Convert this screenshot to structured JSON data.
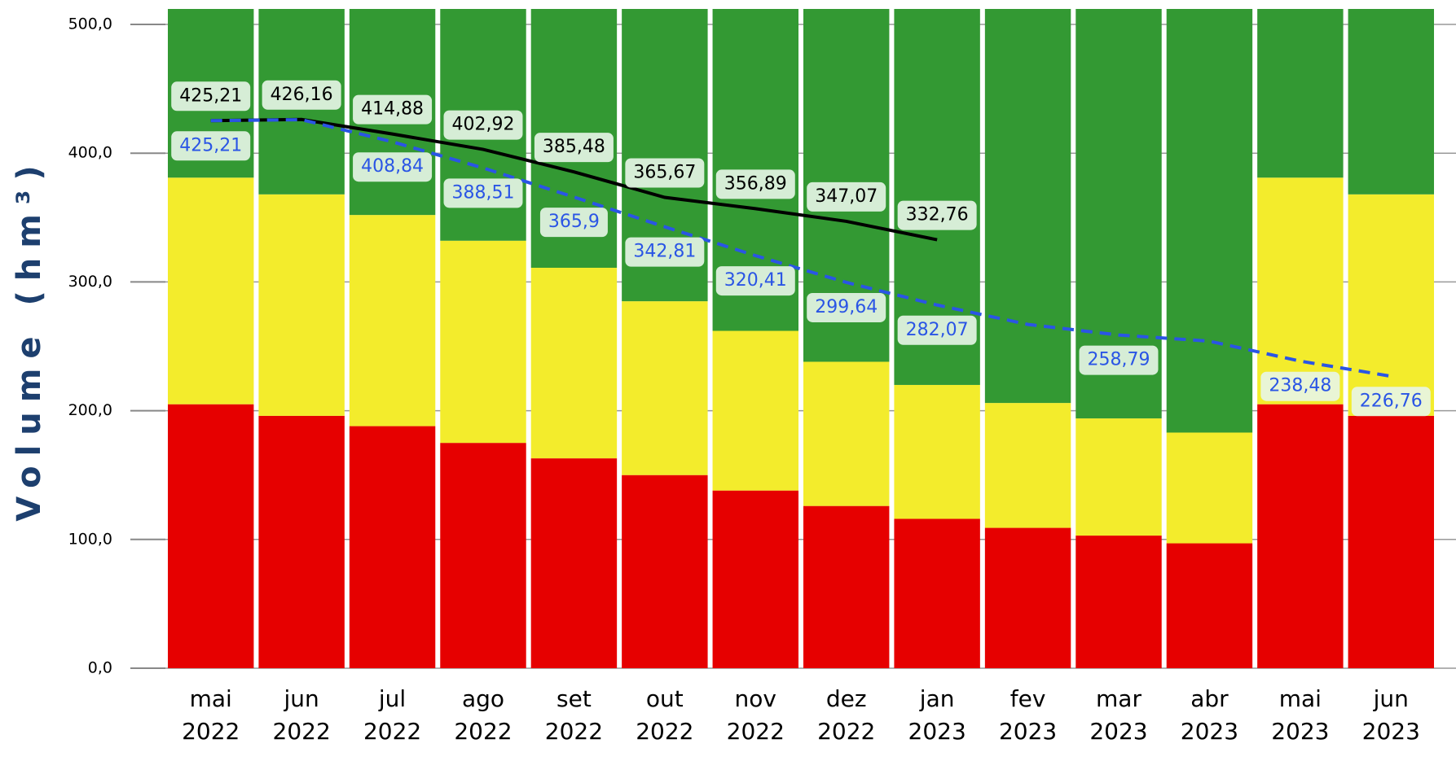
{
  "chart_data": {
    "type": "bar",
    "stacked": true,
    "ylabel": "Volume (hm³)",
    "categories": [
      [
        "mai",
        "2022"
      ],
      [
        "jun",
        "2022"
      ],
      [
        "jul",
        "2022"
      ],
      [
        "ago",
        "2022"
      ],
      [
        "set",
        "2022"
      ],
      [
        "out",
        "2022"
      ],
      [
        "nov",
        "2022"
      ],
      [
        "dez",
        "2022"
      ],
      [
        "jan",
        "2023"
      ],
      [
        "fev",
        "2023"
      ],
      [
        "mar",
        "2023"
      ],
      [
        "abr",
        "2023"
      ],
      [
        "mai",
        "2023"
      ],
      [
        "jun",
        "2023"
      ]
    ],
    "series": [
      {
        "color": "#e60000",
        "values": [
          205,
          196,
          188,
          175,
          163,
          150,
          138,
          126,
          116,
          109,
          103,
          97,
          205,
          196
        ]
      },
      {
        "color": "#f3ec2c",
        "values": [
          176,
          172,
          164,
          157,
          148,
          135,
          124,
          112,
          104,
          97,
          91,
          86,
          176,
          172
        ]
      },
      {
        "color": "#339933",
        "values": [
          131,
          144,
          160,
          180,
          201,
          227,
          250,
          274,
          292,
          306,
          318,
          329,
          131,
          144
        ]
      }
    ],
    "lines": [
      {
        "type": "line",
        "color": "#000000",
        "dashed": false,
        "values": [
          425.21,
          426.16,
          414.88,
          402.92,
          385.48,
          365.67,
          356.89,
          347.07,
          332.76,
          null,
          null,
          null,
          null,
          null
        ],
        "value_labels": [
          "425,21",
          "426,16",
          "414,88",
          "402,92",
          "385,48",
          "365,67",
          "356,89",
          "347,07",
          "332,76",
          null,
          null,
          null,
          null,
          null
        ]
      },
      {
        "type": "line",
        "color": "#2a55e5",
        "dashed": true,
        "values": [
          425.21,
          426,
          408.84,
          388.51,
          365.9,
          342.81,
          320.41,
          299.64,
          282.07,
          267,
          258.79,
          254,
          238.48,
          226.76
        ],
        "value_labels": [
          "425,21",
          null,
          "408,84",
          "388,51",
          "365,9",
          "342,81",
          "320,41",
          "299,64",
          "282,07",
          null,
          "258,79",
          null,
          "238,48",
          "226,76"
        ]
      }
    ],
    "ylim": [
      0,
      512
    ],
    "yticks": [
      {
        "value": 0,
        "label": "0,0"
      },
      {
        "value": 100,
        "label": "100,0"
      },
      {
        "value": 200,
        "label": "200,0"
      },
      {
        "value": 300,
        "label": "300,0"
      },
      {
        "value": 400,
        "label": "400,0"
      },
      {
        "value": 500,
        "label": "500,0"
      }
    ],
    "grid": true
  }
}
